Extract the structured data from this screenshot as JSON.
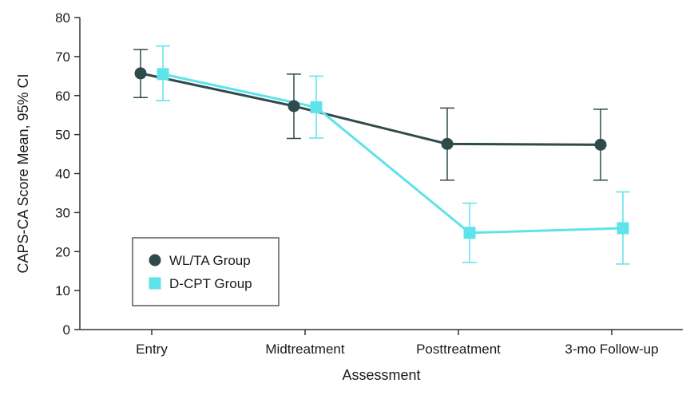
{
  "chart_data": {
    "type": "line",
    "xlabel": "Assessment",
    "ylabel": "CAPS-CA Score Mean, 95% CI",
    "categories": [
      "Entry",
      "Midtreatment",
      "Posttreatment",
      "3-mo Follow-up"
    ],
    "ylim": [
      0,
      80
    ],
    "yticks": [
      0,
      10,
      20,
      30,
      40,
      50,
      60,
      70,
      80
    ],
    "grid": false,
    "legend_position": "bottom-left",
    "series": [
      {
        "name": "WL/TA Group",
        "marker": "circle",
        "color": "#2f4a4a",
        "values": [
          65.7,
          57.3,
          47.6,
          47.4
        ],
        "ci_low": [
          59.5,
          49.0,
          38.3,
          38.3
        ],
        "ci_high": [
          71.8,
          65.5,
          56.8,
          56.5
        ]
      },
      {
        "name": "D-CPT Group",
        "marker": "square",
        "color": "#5ee3ea",
        "values": [
          65.5,
          57.0,
          24.8,
          26.0
        ],
        "ci_low": [
          58.7,
          49.1,
          17.2,
          16.8
        ],
        "ci_high": [
          72.7,
          65.0,
          32.4,
          35.3
        ]
      }
    ]
  }
}
